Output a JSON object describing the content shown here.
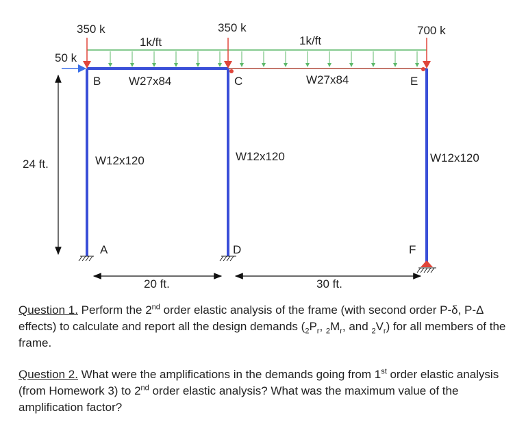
{
  "loads": {
    "lateral": "50 k",
    "point_b": "350 k",
    "point_c": "350 k",
    "point_e": "700 k",
    "udl_left": "1k/ft",
    "udl_right": "1k/ft"
  },
  "nodes": {
    "b": "B",
    "c": "C",
    "e": "E",
    "a": "A",
    "d": "D",
    "f": "F"
  },
  "members": {
    "beam_bc": "W27x84",
    "beam_ce": "W27x84",
    "col_ab": "W12x120",
    "col_dc": "W12x120",
    "col_fe": "W12x120"
  },
  "dims": {
    "height": "24 ft.",
    "span_left": "20 ft.",
    "span_right": "30 ft."
  },
  "colors": {
    "column": "#3a4fd8",
    "beam_bc": "#3a4fd8",
    "beam_ce": "#b04a3a",
    "udl": "#5db86a",
    "point_load": "#e0453a",
    "lateral_load": "#3a6fe8",
    "pin": "#e0453a"
  },
  "questions": {
    "q1": {
      "head": "Question 1.",
      "t1": " Perform the 2",
      "s1": "nd",
      "t2": " order elastic analysis of the frame (with second order P-δ, P-Δ effects) to calculate and report all the design demands (",
      "p_pre": "2",
      "p_main": "P",
      "p_sub": "r",
      "sep1": ", ",
      "m_pre": "2",
      "m_main": "M",
      "m_sub": "r",
      "sep2": ", and ",
      "v_pre": "2",
      "v_main": "V",
      "v_sub": "r",
      "t3": ") for all members of the frame."
    },
    "q2": {
      "head": "Question 2.",
      "t1": " What were the amplifications in the demands going from 1",
      "s1": "st",
      "t2": " order elastic analysis (from Homework 3) to 2",
      "s2": "nd",
      "t3": " order elastic analysis? What was the maximum value of the amplification factor?"
    }
  }
}
